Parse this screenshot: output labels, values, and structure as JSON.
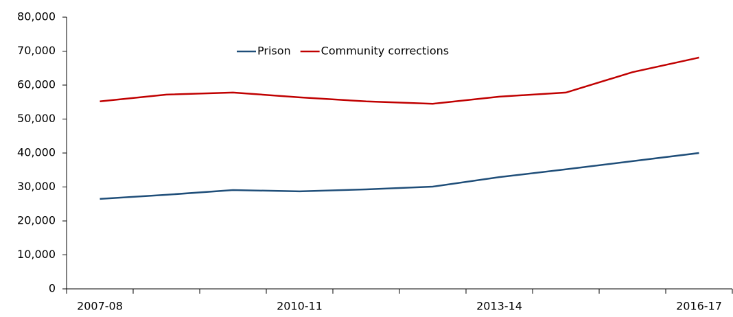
{
  "chart_data": {
    "type": "line",
    "categories": [
      "2007-08",
      null,
      null,
      "2010-11",
      null,
      null,
      "2013-14",
      null,
      null,
      "2016-17"
    ],
    "series": [
      {
        "name": "Prison",
        "color": "#1f4e79",
        "values": [
          26500,
          27700,
          29100,
          28700,
          29300,
          30100,
          32900,
          35200,
          37600,
          40000
        ]
      },
      {
        "name": "Community corrections",
        "color": "#c00000",
        "values": [
          55200,
          57200,
          57800,
          56400,
          55200,
          54500,
          56600,
          57800,
          63800,
          68100
        ]
      }
    ],
    "ylim": [
      0,
      80000
    ],
    "yticks": [
      0,
      {
        "value": 10000,
        "label": "10,000"
      },
      {
        "value": 20000,
        "label": "20,000"
      },
      {
        "value": 30000,
        "label": "30,000"
      },
      {
        "value": 40000,
        "label": "40,000"
      },
      {
        "value": 50000,
        "label": "50,000"
      },
      {
        "value": 60000,
        "label": "60,000"
      },
      {
        "value": 70000,
        "label": "70,000"
      },
      {
        "value": 80000,
        "label": "80,000"
      }
    ],
    "grid": false,
    "legend": "top"
  }
}
